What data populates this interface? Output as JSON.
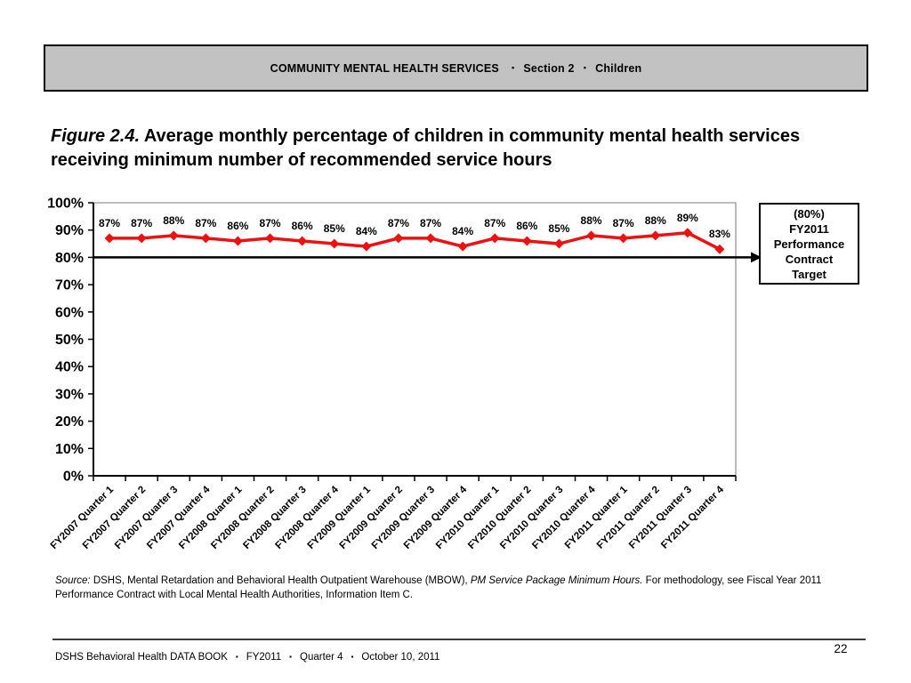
{
  "header": {
    "title": "COMMUNITY MENTAL HEALTH SERVICES",
    "separator": "▪",
    "section": "Section 2",
    "category": "Children"
  },
  "figure_title": {
    "label": "Figure 2.4.",
    "text": " Average monthly percentage of children in community mental health services receiving minimum number of recommended service hours"
  },
  "chart_data": {
    "type": "line",
    "title": "",
    "xlabel": "",
    "ylabel": "",
    "categories": [
      "FY2007 Quarter 1",
      "FY2007 Quarter 2",
      "FY2007 Quarter 3",
      "FY2007 Quarter 4",
      "FY2008 Quarter 1",
      "FY2008 Quarter 2",
      "FY2008 Quarter 3",
      "FY2008 Quarter 4",
      "FY2009 Quarter 1",
      "FY2009 Quarter 2",
      "FY2009 Quarter 3",
      "FY2009 Quarter 4",
      "FY2010 Quarter 1",
      "FY2010 Quarter 2",
      "FY2010 Quarter 3",
      "FY2010 Quarter 4",
      "FY2011 Quarter 1",
      "FY2011 Quarter 2",
      "FY2011 Quarter 3",
      "FY2011 Quarter 4"
    ],
    "values": [
      87,
      87,
      88,
      87,
      86,
      87,
      86,
      85,
      84,
      87,
      87,
      84,
      87,
      86,
      85,
      88,
      87,
      88,
      89,
      83
    ],
    "data_label_suffix": "%",
    "ylim": [
      0,
      100
    ],
    "ytick_step": 10,
    "ytick_labels": [
      "0%",
      "10%",
      "20%",
      "30%",
      "40%",
      "50%",
      "60%",
      "70%",
      "80%",
      "90%",
      "100%"
    ],
    "grid": false,
    "legend": "none",
    "marker": "diamond",
    "line_color": "#ee1111",
    "target_line": {
      "value": 80,
      "color": "#000000"
    }
  },
  "annotation": {
    "text": "(80%)\nFY2011\nPerformance\nContract\nTarget"
  },
  "source": {
    "label": "Source:",
    "text1": " DSHS, Mental Retardation and Behavioral Health Outpatient Warehouse (MBOW), ",
    "italic2": "PM Service Package Minimum Hours.",
    "text2": " For methodology, see Fiscal Year 2011 Performance Contract with Local Mental Health Authorities, Information Item C."
  },
  "footer": {
    "book": "DSHS Behavioral Health DATA BOOK",
    "separator": "▪",
    "fiscal_year": "FY2011",
    "quarter": "Quarter 4",
    "date": "October 10, 2011",
    "page_number": "22"
  }
}
